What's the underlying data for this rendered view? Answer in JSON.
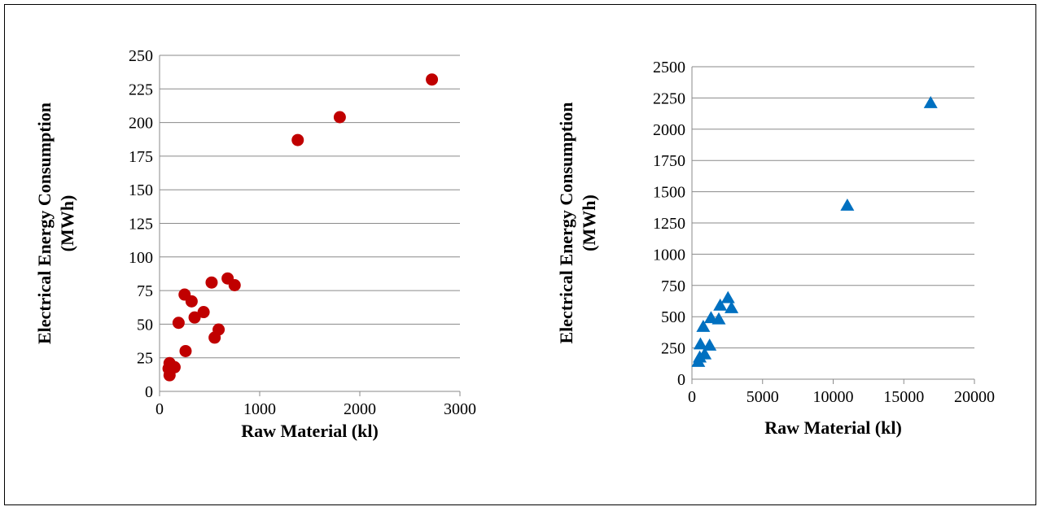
{
  "chart_data": [
    {
      "type": "scatter",
      "xlabel": "Raw Material (kl)",
      "ylabel_line1": "Electrical Energy Consumption",
      "ylabel_line2": "(MWh)",
      "xlim": [
        0,
        3000
      ],
      "ylim": [
        0,
        250
      ],
      "xticks": [
        0,
        1000,
        2000,
        3000
      ],
      "yticks": [
        0,
        25,
        50,
        75,
        100,
        125,
        150,
        175,
        200,
        225,
        250
      ],
      "grid": "horizontal",
      "marker": "circle",
      "color": "#C00000",
      "points": [
        [
          100,
          21
        ],
        [
          90,
          17
        ],
        [
          150,
          18
        ],
        [
          100,
          12
        ],
        [
          190,
          51
        ],
        [
          250,
          72
        ],
        [
          260,
          30
        ],
        [
          320,
          67
        ],
        [
          350,
          55
        ],
        [
          440,
          59
        ],
        [
          520,
          81
        ],
        [
          550,
          40
        ],
        [
          590,
          46
        ],
        [
          680,
          84
        ],
        [
          750,
          79
        ],
        [
          1380,
          187
        ],
        [
          1800,
          204
        ],
        [
          2720,
          232
        ]
      ]
    },
    {
      "type": "scatter",
      "xlabel": "Raw Material (kl)",
      "ylabel_line1": "Electrical Energy Consumption",
      "ylabel_line2": "(MWh)",
      "xlim": [
        0,
        20000
      ],
      "ylim": [
        0,
        2500
      ],
      "xticks": [
        0,
        5000,
        10000,
        15000,
        20000
      ],
      "yticks": [
        0,
        250,
        500,
        750,
        1000,
        1250,
        1500,
        1750,
        2000,
        2250,
        2500
      ],
      "grid": "horizontal",
      "marker": "triangle",
      "color": "#0070C0",
      "points": [
        [
          450,
          140
        ],
        [
          550,
          175
        ],
        [
          600,
          280
        ],
        [
          800,
          420
        ],
        [
          900,
          200
        ],
        [
          1250,
          270
        ],
        [
          1350,
          490
        ],
        [
          1900,
          480
        ],
        [
          2000,
          590
        ],
        [
          2550,
          650
        ],
        [
          2800,
          570
        ],
        [
          11000,
          1390
        ],
        [
          16900,
          2210
        ]
      ]
    }
  ]
}
